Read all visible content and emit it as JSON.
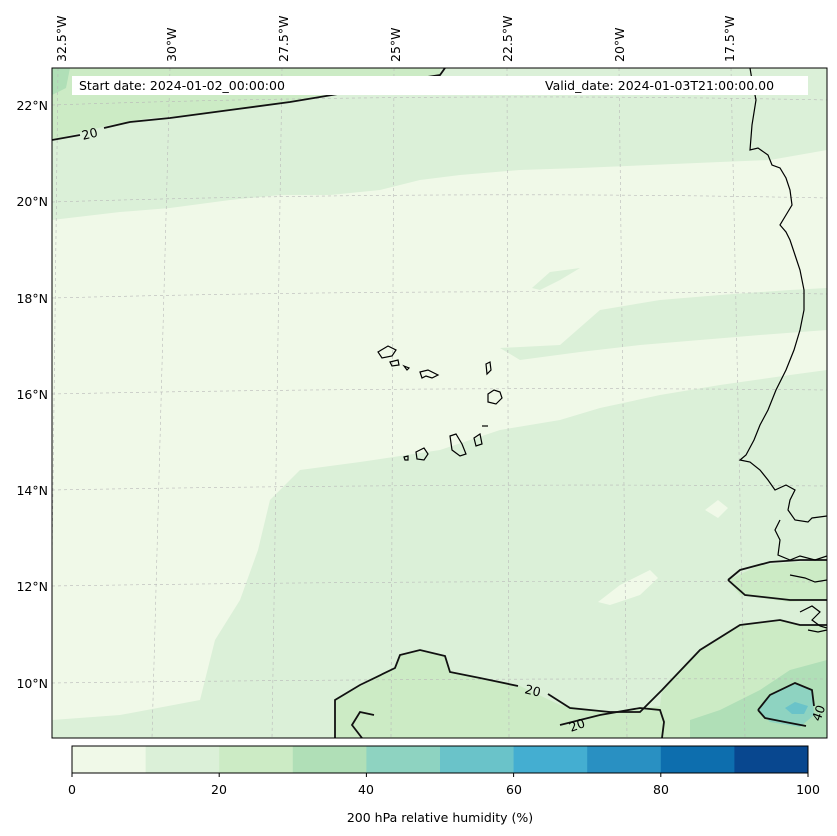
{
  "header": {
    "start_date": "Start date: 2024-01-02_00:00:00",
    "valid_date": "Valid_date: 2024-01-03T21:00:00.00"
  },
  "axes": {
    "longitude_labels": [
      "32.5°W",
      "30°W",
      "27.5°W",
      "25°W",
      "22.5°W",
      "20°W",
      "17.5°W"
    ],
    "latitude_labels": [
      "22°N",
      "20°N",
      "18°N",
      "16°N",
      "14°N",
      "12°N",
      "10°N"
    ]
  },
  "contours": {
    "labels": [
      "20",
      "20",
      "20",
      "40"
    ]
  },
  "colorbar": {
    "label": "200 hPa relative humidity (%)",
    "tick_labels": [
      "0",
      "20",
      "40",
      "60",
      "80",
      "100"
    ],
    "levels": [
      0,
      10,
      20,
      30,
      40,
      50,
      60,
      70,
      80,
      90,
      100
    ],
    "colors": [
      "#f0f9e8",
      "#dbf0d8",
      "#ccebc5",
      "#b0dfb7",
      "#8ed3c1",
      "#6ac3c9",
      "#44aed1",
      "#2990c2",
      "#0d6eae",
      "#08478f"
    ]
  }
}
